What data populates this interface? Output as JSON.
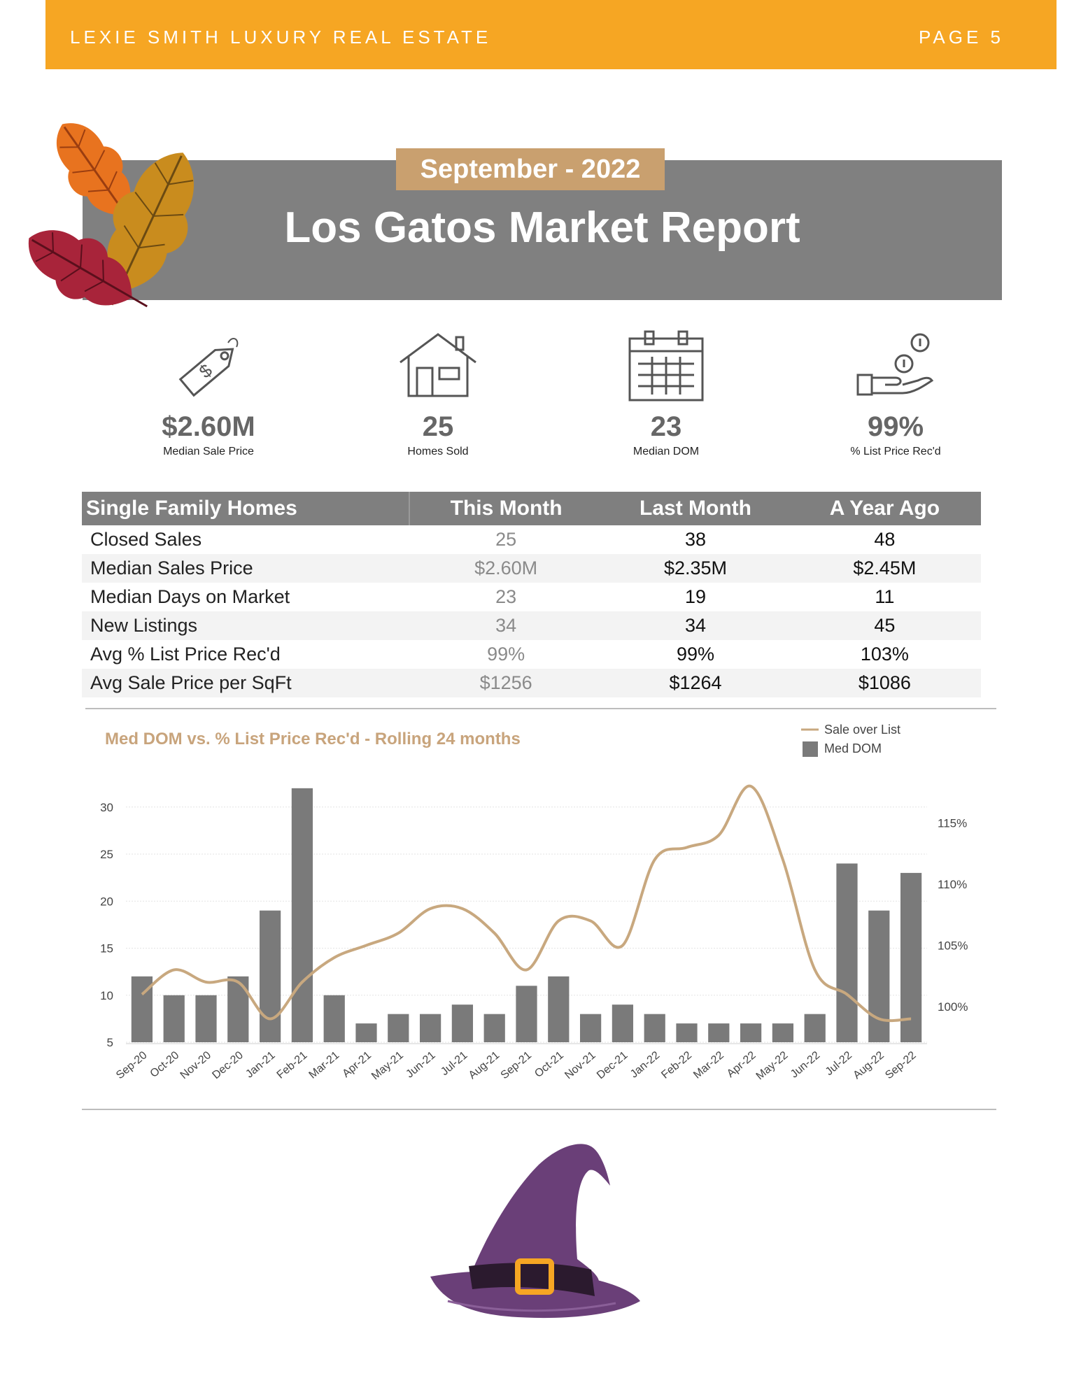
{
  "header": {
    "brand": "LEXIE SMITH LUXURY REAL ESTATE",
    "page": "PAGE 5",
    "color": "#f6a623"
  },
  "banner": {
    "date": "September - 2022",
    "title": "Los Gatos Market Report"
  },
  "stats": [
    {
      "icon": "price-tag-icon",
      "value": "$2.60M",
      "label": "Median Sale Price"
    },
    {
      "icon": "house-icon",
      "value": "25",
      "label": "Homes Sold"
    },
    {
      "icon": "calendar-icon",
      "value": "23",
      "label": "Median DOM"
    },
    {
      "icon": "hand-coins-icon",
      "value": "99%",
      "label": "% List Price Rec'd"
    }
  ],
  "table": {
    "headers": [
      "Single Family Homes",
      "This Month",
      "Last Month",
      "A Year Ago"
    ],
    "rows": [
      [
        "Closed Sales",
        "25",
        "38",
        "48"
      ],
      [
        "Median Sales Price",
        "$2.60M",
        "$2.35M",
        "$2.45M"
      ],
      [
        "Median Days on Market",
        "23",
        "19",
        "11"
      ],
      [
        "New Listings",
        "34",
        "34",
        "45"
      ],
      [
        "Avg % List Price Rec'd",
        "99%",
        "99%",
        "103%"
      ],
      [
        "Avg Sale Price per SqFt",
        "$1256",
        "$1264",
        "$1086"
      ]
    ]
  },
  "chart_data": {
    "type": "bar",
    "title": "Med DOM  vs. % List Price Rec'd - Rolling 24 months",
    "categories": [
      "Sep-20",
      "Oct-20",
      "Nov-20",
      "Dec-20",
      "Jan-21",
      "Feb-21",
      "Mar-21",
      "Apr-21",
      "May-21",
      "Jun-21",
      "Jul-21",
      "Aug-21",
      "Sep-21",
      "Oct-21",
      "Nov-21",
      "Dec-21",
      "Jan-22",
      "Feb-22",
      "Mar-22",
      "Apr-22",
      "May-22",
      "Jun-22",
      "Jul-22",
      "Aug-22",
      "Sep-22"
    ],
    "series": [
      {
        "name": "Med DOM",
        "type": "bar",
        "axis": "left",
        "color": "#7a7a7a",
        "values": [
          12,
          10,
          10,
          12,
          19,
          32,
          10,
          7,
          8,
          8,
          9,
          8,
          11,
          12,
          8,
          9,
          8,
          7,
          7,
          7,
          7,
          8,
          24,
          19,
          23
        ]
      },
      {
        "name": "Sale over List",
        "type": "line",
        "axis": "right",
        "color": "#c8a87f",
        "values": [
          101,
          103,
          102,
          102,
          99,
          102,
          104,
          105,
          106,
          108,
          108,
          106,
          103,
          107,
          107,
          105,
          112,
          113,
          114,
          118,
          112,
          103,
          101,
          99,
          99
        ]
      }
    ],
    "left_axis": {
      "ticks": [
        5,
        10,
        15,
        20,
        25,
        30
      ],
      "range": [
        5,
        33
      ]
    },
    "right_axis": {
      "ticks": [
        "100%",
        "105%",
        "110%",
        "115%"
      ],
      "range": [
        98,
        118
      ]
    },
    "legend": {
      "placement": "top-right"
    },
    "grid": true
  }
}
